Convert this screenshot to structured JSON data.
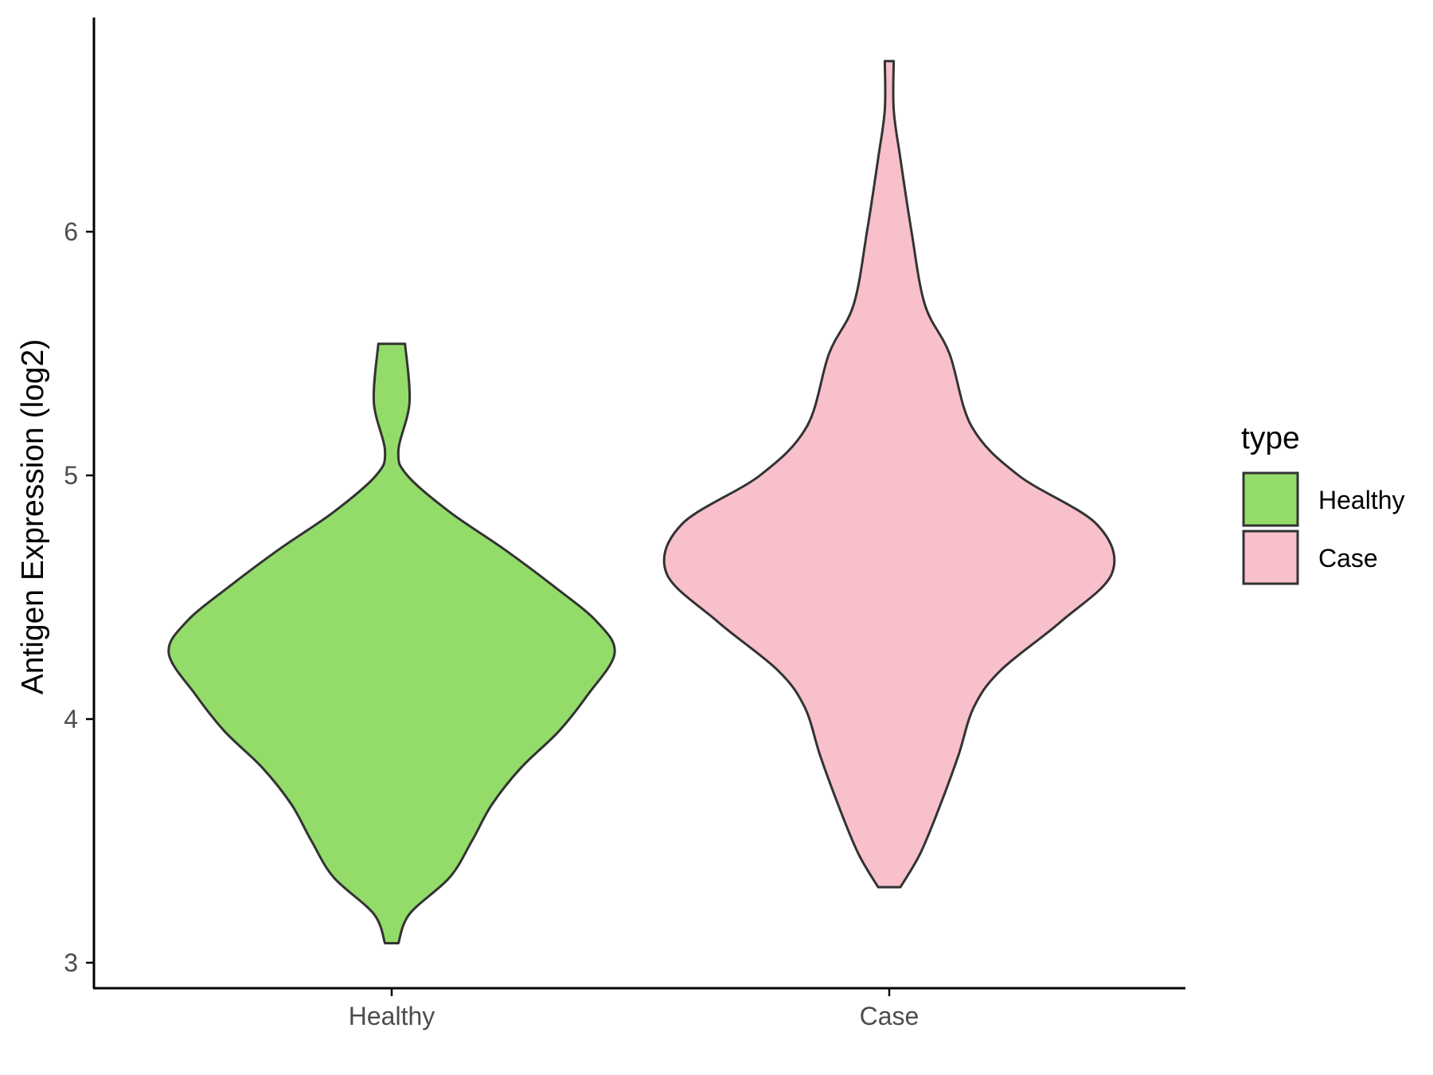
{
  "chart_data": {
    "type": "violin",
    "title": "",
    "xlabel": "",
    "ylabel": "Antigen Expression (log2)",
    "ylim": [
      2.9,
      6.95
    ],
    "yticks": [
      3,
      4,
      5,
      6
    ],
    "categories": [
      "Healthy",
      "Case"
    ],
    "legend": {
      "title": "type",
      "position": "right",
      "entries": [
        {
          "label": "Healthy",
          "color": "#93DC6A"
        },
        {
          "label": "Case",
          "color": "#F7C0CB"
        }
      ]
    },
    "series": [
      {
        "name": "Healthy",
        "color": "#93DC6A",
        "min": 3.08,
        "max": 5.54,
        "density_profile": [
          [
            3.08,
            0.03
          ],
          [
            3.2,
            0.08
          ],
          [
            3.35,
            0.26
          ],
          [
            3.5,
            0.36
          ],
          [
            3.65,
            0.45
          ],
          [
            3.8,
            0.58
          ],
          [
            3.95,
            0.75
          ],
          [
            4.1,
            0.88
          ],
          [
            4.27,
            1.0
          ],
          [
            4.4,
            0.92
          ],
          [
            4.55,
            0.72
          ],
          [
            4.7,
            0.5
          ],
          [
            4.85,
            0.26
          ],
          [
            5.0,
            0.07
          ],
          [
            5.1,
            0.03
          ],
          [
            5.3,
            0.08
          ],
          [
            5.54,
            0.06
          ]
        ]
      },
      {
        "name": "Case",
        "color": "#F7C0CB",
        "min": 3.31,
        "max": 6.7,
        "density_profile": [
          [
            3.31,
            0.05
          ],
          [
            3.45,
            0.14
          ],
          [
            3.65,
            0.23
          ],
          [
            3.85,
            0.31
          ],
          [
            4.05,
            0.38
          ],
          [
            4.2,
            0.5
          ],
          [
            4.4,
            0.77
          ],
          [
            4.6,
            1.0
          ],
          [
            4.8,
            0.93
          ],
          [
            5.0,
            0.58
          ],
          [
            5.2,
            0.37
          ],
          [
            5.5,
            0.27
          ],
          [
            5.7,
            0.16
          ],
          [
            6.0,
            0.1
          ],
          [
            6.3,
            0.05
          ],
          [
            6.5,
            0.02
          ],
          [
            6.7,
            0.02
          ]
        ]
      }
    ]
  }
}
